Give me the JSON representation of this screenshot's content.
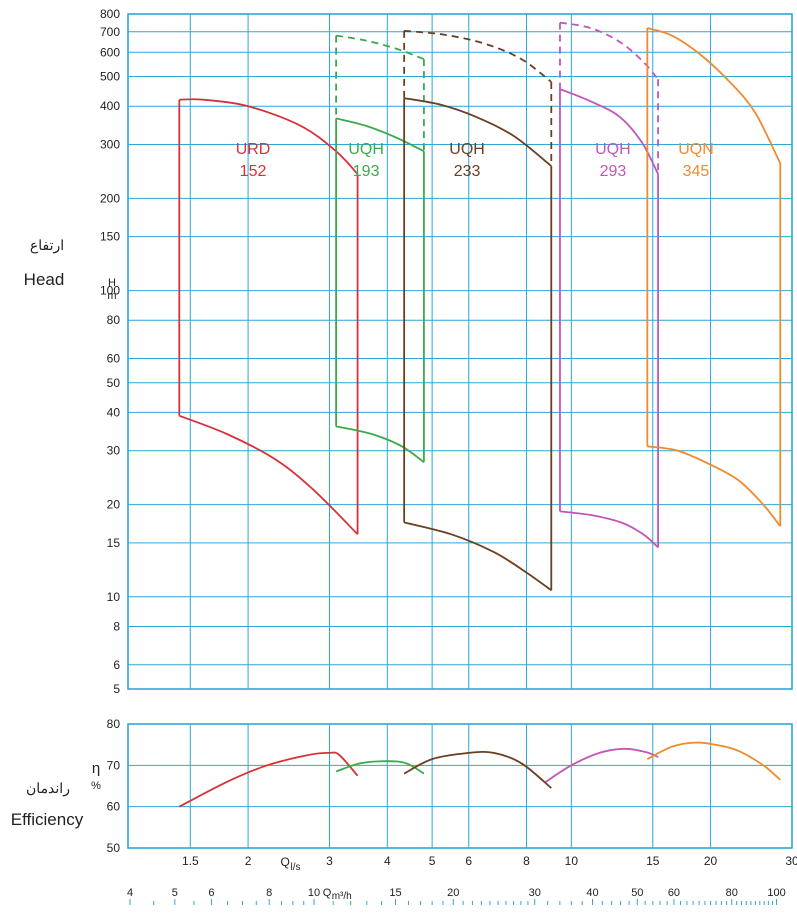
{
  "labels": {
    "head_fa": "ارتفاع",
    "head_en": "Head",
    "head_unit": [
      "H",
      "m"
    ],
    "eff_fa": "راندمان",
    "eff_en": "Efficiency",
    "eff_unit": [
      "η",
      "%"
    ],
    "flow_ls_label": "Q",
    "flow_ls_sub": "l/s",
    "flow_m3h_label": "Q",
    "flow_m3h_sub": "m³/h"
  },
  "colors": {
    "grid": "#2ea6d8",
    "frame": "#2ea6d8",
    "URD152": "#d9303a",
    "UQH193": "#3aaa4e",
    "UQH233": "#6b3f22",
    "UQH293": "#c256b8",
    "UQN345": "#ef8a2e"
  },
  "chart_data": {
    "type": "line",
    "x_scale": "log",
    "y_scale": "log",
    "xlim_ls": [
      1.1,
      30
    ],
    "head_ylim": [
      5,
      800
    ],
    "eff_ylim": [
      50,
      80
    ],
    "grid": true,
    "x_ticks_ls": [
      "1.5",
      "2",
      "3",
      "4",
      "5",
      "6",
      "8",
      "10",
      "15",
      "20",
      "30"
    ],
    "x_ticks_m3h": [
      "4",
      "5",
      "6",
      "8",
      "10",
      "15",
      "20",
      "30",
      "40",
      "50",
      "60",
      "80",
      "100"
    ],
    "head_ticks": [
      "5",
      "6",
      "8",
      "10",
      "15",
      "20",
      "30",
      "40",
      "50",
      "60",
      "80",
      "100",
      "150",
      "200",
      "300",
      "400",
      "500",
      "600",
      "700",
      "800"
    ],
    "eff_ticks": [
      "50",
      "60",
      "70",
      "80"
    ],
    "series": [
      {
        "name": "URD 152",
        "key": "URD152",
        "label_lines": [
          "URD",
          "152"
        ],
        "label_at": {
          "q": 2.05,
          "h": 255
        },
        "q_min": 1.42,
        "q_max": 3.45,
        "top": [
          [
            1.42,
            420
          ],
          [
            1.6,
            420
          ],
          [
            2.0,
            400
          ],
          [
            2.6,
            345
          ],
          [
            3.1,
            285
          ],
          [
            3.45,
            240
          ]
        ],
        "bottom": [
          [
            1.42,
            39
          ],
          [
            1.8,
            34
          ],
          [
            2.3,
            28
          ],
          [
            2.8,
            22
          ],
          [
            3.45,
            16
          ]
        ],
        "top_dashed": [],
        "efficiency": [
          [
            1.42,
            60
          ],
          [
            1.8,
            66
          ],
          [
            2.2,
            70
          ],
          [
            2.7,
            72.5
          ],
          [
            3.0,
            73
          ],
          [
            3.15,
            72.5
          ],
          [
            3.45,
            67.5
          ]
        ]
      },
      {
        "name": "UQH 193",
        "key": "UQH193",
        "label_lines": [
          "UQH",
          "193"
        ],
        "label_at": {
          "q": 3.6,
          "h": 255
        },
        "q_min": 3.1,
        "q_max": 4.8,
        "top": [
          [
            3.1,
            365
          ],
          [
            3.6,
            345
          ],
          [
            4.2,
            315
          ],
          [
            4.8,
            285
          ]
        ],
        "bottom": [
          [
            3.1,
            36
          ],
          [
            3.7,
            34
          ],
          [
            4.3,
            31
          ],
          [
            4.8,
            27.5
          ]
        ],
        "top_dashed": [
          [
            3.1,
            680
          ],
          [
            3.6,
            655
          ],
          [
            4.2,
            615
          ],
          [
            4.8,
            570
          ]
        ],
        "efficiency": [
          [
            3.1,
            68.5
          ],
          [
            3.5,
            70.5
          ],
          [
            4.0,
            71
          ],
          [
            4.4,
            70.5
          ],
          [
            4.8,
            68
          ]
        ]
      },
      {
        "name": "UQH 233",
        "key": "UQH233",
        "label_lines": [
          "UQH",
          "233"
        ],
        "label_at": {
          "q": 5.95,
          "h": 255
        },
        "q_min": 4.35,
        "q_max": 9.05,
        "top": [
          [
            4.35,
            425
          ],
          [
            5.2,
            405
          ],
          [
            6.2,
            370
          ],
          [
            7.5,
            320
          ],
          [
            9.05,
            255
          ]
        ],
        "bottom": [
          [
            4.35,
            17.5
          ],
          [
            5.5,
            16
          ],
          [
            6.8,
            14
          ],
          [
            8.0,
            12
          ],
          [
            9.05,
            10.5
          ]
        ],
        "top_dashed": [
          [
            4.35,
            705
          ],
          [
            5.3,
            685
          ],
          [
            6.5,
            640
          ],
          [
            7.8,
            570
          ],
          [
            9.05,
            480
          ]
        ],
        "efficiency": [
          [
            4.35,
            68
          ],
          [
            5.0,
            71.5
          ],
          [
            6.0,
            73
          ],
          [
            6.8,
            73
          ],
          [
            7.8,
            70.5
          ],
          [
            9.05,
            64.5
          ]
        ]
      },
      {
        "name": "UQH 293",
        "key": "UQH293",
        "label_lines": [
          "UQH",
          "293"
        ],
        "label_at": {
          "q": 12.3,
          "h": 255
        },
        "q_min": 9.45,
        "q_max": 15.4,
        "top": [
          [
            9.45,
            455
          ],
          [
            11,
            415
          ],
          [
            12.7,
            370
          ],
          [
            14.2,
            305
          ],
          [
            15.4,
            240
          ]
        ],
        "bottom": [
          [
            9.45,
            19
          ],
          [
            11,
            18.5
          ],
          [
            12.8,
            17.5
          ],
          [
            14.3,
            16
          ],
          [
            15.4,
            14.5
          ]
        ],
        "top_dashed": [
          [
            9.45,
            750
          ],
          [
            11,
            720
          ],
          [
            12.7,
            650
          ],
          [
            14.2,
            565
          ],
          [
            15.4,
            490
          ]
        ],
        "efficiency": [
          [
            8.8,
            66
          ],
          [
            10,
            70
          ],
          [
            11.5,
            73
          ],
          [
            13,
            74
          ],
          [
            14.5,
            73.2
          ],
          [
            15.4,
            72
          ]
        ]
      },
      {
        "name": "UQN 345",
        "key": "UQN345",
        "label_lines": [
          "UQN",
          "345"
        ],
        "label_at": {
          "q": 18.6,
          "h": 255
        },
        "q_min": 14.6,
        "q_max": 28.3,
        "top": [
          [
            14.6,
            720
          ],
          [
            16.5,
            680
          ],
          [
            19,
            590
          ],
          [
            22,
            480
          ],
          [
            25,
            380
          ],
          [
            28.3,
            260
          ]
        ],
        "bottom": [
          [
            14.6,
            31
          ],
          [
            17,
            30
          ],
          [
            20,
            27
          ],
          [
            23,
            24
          ],
          [
            26,
            20
          ],
          [
            28.3,
            17
          ]
        ],
        "top_dashed": [],
        "efficiency": [
          [
            14.6,
            71.5
          ],
          [
            16.5,
            74.5
          ],
          [
            18.5,
            75.5
          ],
          [
            20.5,
            75
          ],
          [
            23,
            73.5
          ],
          [
            26,
            70
          ],
          [
            28.3,
            66.5
          ]
        ]
      }
    ]
  }
}
